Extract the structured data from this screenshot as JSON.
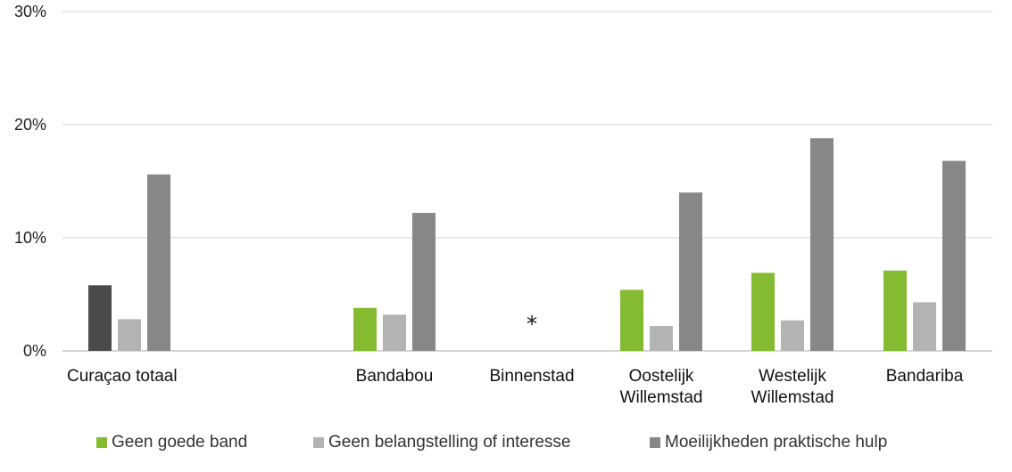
{
  "chart_data": {
    "type": "bar",
    "title": "",
    "xlabel": "",
    "ylabel": "",
    "ylim": [
      0,
      30
    ],
    "yticks": [
      0,
      10,
      20,
      30
    ],
    "ytick_labels": [
      "0%",
      "10%",
      "20%",
      "30%"
    ],
    "grid": true,
    "legend_position": "bottom",
    "categories": [
      [
        "Curaçao totaal"
      ],
      [
        "Bandabou"
      ],
      [
        "Binnenstad"
      ],
      [
        "Oostelijk",
        "Willemstad"
      ],
      [
        "Westelijk",
        "Willemstad"
      ],
      [
        "Bandariba"
      ]
    ],
    "series": [
      {
        "name": "Geen goede band",
        "color": "#84bb30",
        "values": [
          5.8,
          3.8,
          null,
          5.4,
          6.9,
          7.1
        ]
      },
      {
        "name": "Geen belangstelling of interesse",
        "color": "#b3b3b3",
        "values": [
          2.8,
          3.2,
          null,
          2.2,
          2.7,
          4.3
        ]
      },
      {
        "name": "Moeilijkheden praktische hulp",
        "color": "#878787",
        "values": [
          15.6,
          12.2,
          null,
          14.0,
          18.8,
          16.8
        ]
      }
    ],
    "first_bar_color_override": "#4a4a4a",
    "annotations": [
      {
        "category": "Binnenstad",
        "text": "*"
      }
    ]
  }
}
